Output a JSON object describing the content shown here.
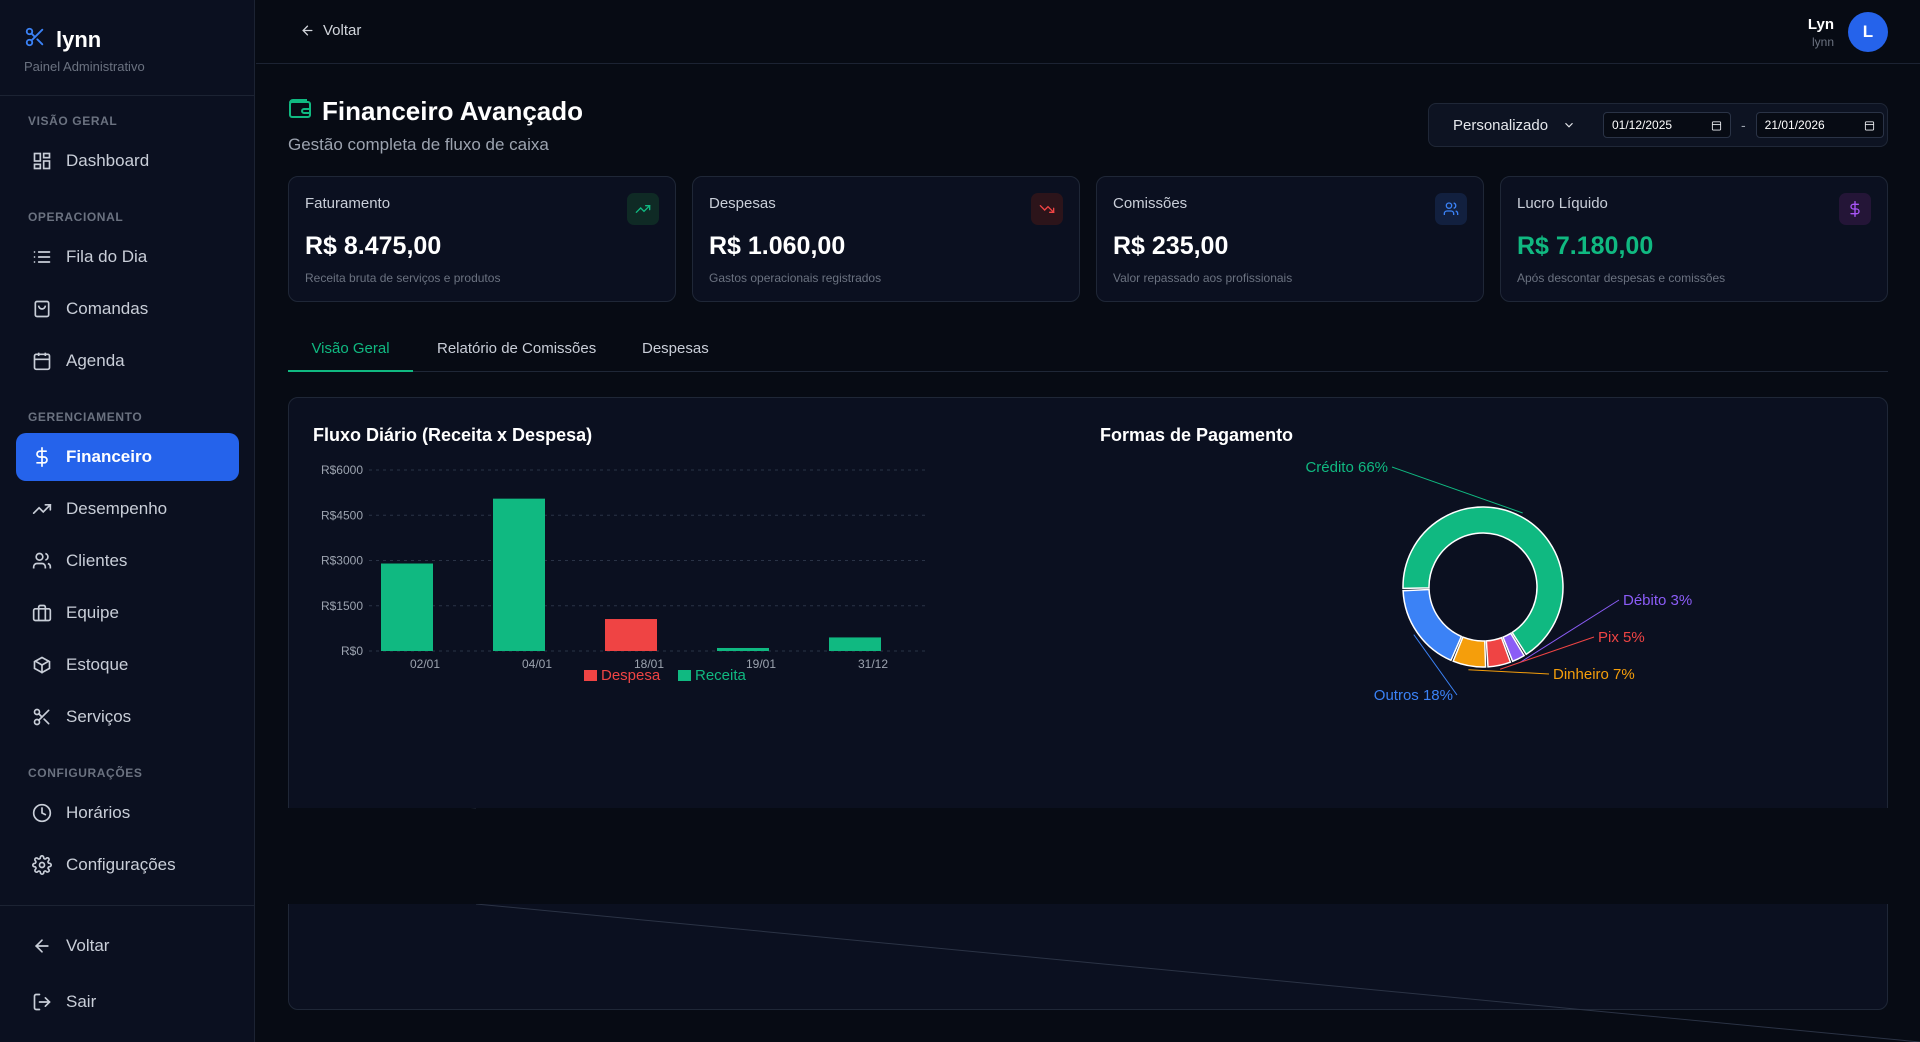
{
  "brand": {
    "name": "lynn",
    "subtitle": "Painel Administrativo"
  },
  "sidebar": {
    "sections": [
      "VISÃO GERAL",
      "OPERACIONAL",
      "GERENCIAMENTO",
      "CONFIGURAÇÕES"
    ],
    "items": [
      {
        "label": "Dashboard",
        "icon": "dashboard-icon"
      },
      {
        "label": "Fila do Dia",
        "icon": "list-icon"
      },
      {
        "label": "Comandas",
        "icon": "receipt-icon"
      },
      {
        "label": "Agenda",
        "icon": "calendar-icon"
      },
      {
        "label": "Financeiro",
        "icon": "dollar-icon",
        "active": true
      },
      {
        "label": "Desempenho",
        "icon": "trend-icon"
      },
      {
        "label": "Clientes",
        "icon": "users-icon"
      },
      {
        "label": "Equipe",
        "icon": "briefcase-icon"
      },
      {
        "label": "Estoque",
        "icon": "box-icon"
      },
      {
        "label": "Serviços",
        "icon": "scissors-icon"
      },
      {
        "label": "Horários",
        "icon": "clock-icon"
      },
      {
        "label": "Configurações",
        "icon": "gear-icon"
      }
    ],
    "bottom": [
      {
        "label": "Voltar",
        "icon": "arrow-left-icon"
      },
      {
        "label": "Sair",
        "icon": "logout-icon"
      }
    ]
  },
  "topbar": {
    "back_label": "Voltar",
    "user_name": "Lyn",
    "user_sub": "lynn",
    "avatar_letter": "L"
  },
  "page": {
    "title": "Financeiro Avançado",
    "subtitle": "Gestão completa de fluxo de caixa"
  },
  "filters": {
    "period": "Personalizado",
    "date_from": "01/12/2025",
    "date_to": "21/01/2026",
    "separator": "-"
  },
  "cards": [
    {
      "label": "Faturamento",
      "value": "R$ 8.475,00",
      "desc": "Receita bruta de serviços e produtos",
      "icon": "trend-up-icon",
      "color": "#10b981"
    },
    {
      "label": "Despesas",
      "value": "R$ 1.060,00",
      "desc": "Gastos operacionais registrados",
      "icon": "trend-down-icon",
      "color": "#ef4444"
    },
    {
      "label": "Comissões",
      "value": "R$ 235,00",
      "desc": "Valor repassado aos profissionais",
      "icon": "users-icon",
      "color": "#3b82f6"
    },
    {
      "label": "Lucro Líquido",
      "value": "R$ 7.180,00",
      "desc": "Após descontar despesas e comissões",
      "icon": "dollar-icon",
      "color": "#a855f7"
    }
  ],
  "tabs": [
    "Visão Geral",
    "Relatório de Comissões",
    "Despesas"
  ],
  "colors": {
    "receita": "#10b981",
    "despesa": "#ef4444",
    "accent": "#2563eb"
  },
  "chart_data": [
    {
      "type": "bar",
      "title": "Fluxo Diário (Receita x Despesa)",
      "categories": [
        "02/01",
        "04/01",
        "18/01",
        "19/01",
        "31/12"
      ],
      "yticks": [
        "R$0",
        "R$1500",
        "R$3000",
        "R$4500",
        "R$6000"
      ],
      "ylim": [
        0,
        6000
      ],
      "series": [
        {
          "name": "Despesa",
          "color": "#ef4444",
          "values": [
            0,
            0,
            1060,
            0,
            0
          ]
        },
        {
          "name": "Receita",
          "color": "#10b981",
          "values": [
            2900,
            5050,
            0,
            100,
            450
          ]
        }
      ],
      "legend": "bottom"
    },
    {
      "type": "pie",
      "title": "Formas de Pagamento",
      "slices": [
        {
          "label": "Crédito 66%",
          "value": 66,
          "color": "#10b981"
        },
        {
          "label": "Débito 3%",
          "value": 3,
          "color": "#8b5cf6"
        },
        {
          "label": "Pix 5%",
          "value": 5,
          "color": "#ef4444"
        },
        {
          "label": "Dinheiro 7%",
          "value": 7,
          "color": "#f59e0b"
        },
        {
          "label": "Outros 18%",
          "value": 18,
          "color": "#3b82f6"
        }
      ]
    }
  ]
}
